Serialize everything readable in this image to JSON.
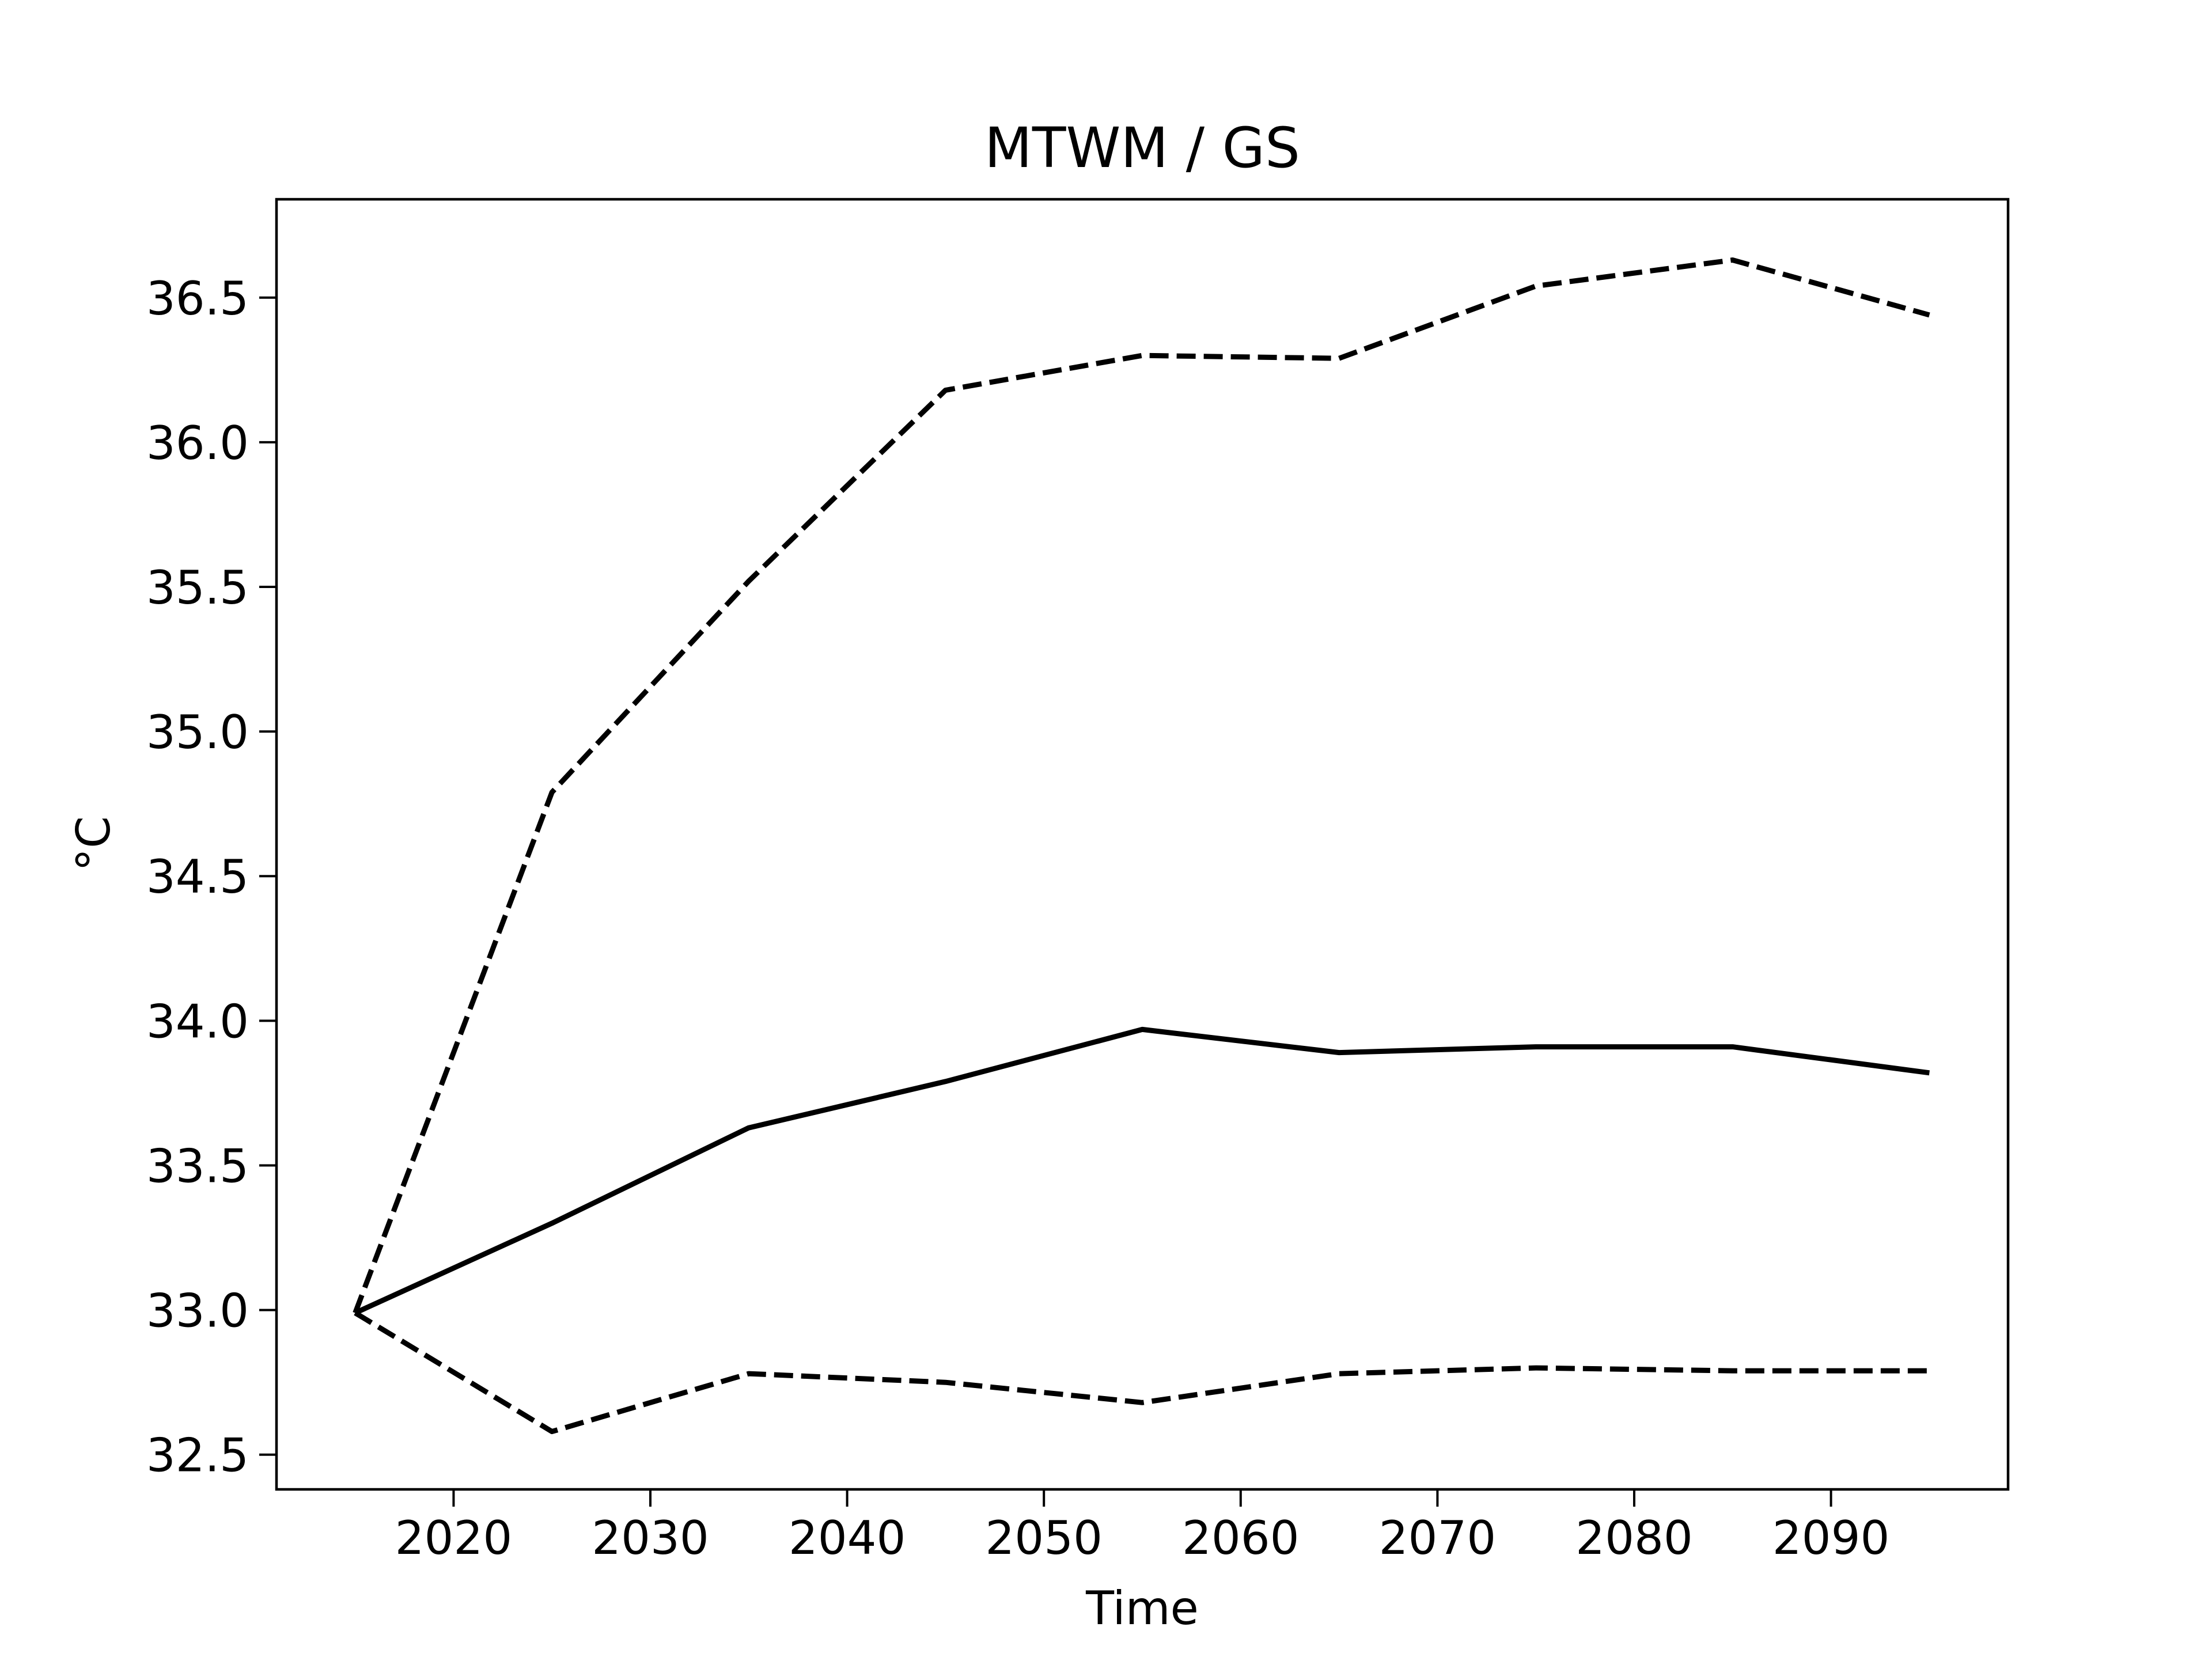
{
  "chart_data": {
    "type": "line",
    "title": "MTWM / GS",
    "xlabel": "Time",
    "ylabel": "°C",
    "xlim": [
      2011,
      2099
    ],
    "ylim": [
      32.38,
      36.84
    ],
    "xticks": [
      2020,
      2030,
      2040,
      2050,
      2060,
      2070,
      2080,
      2090
    ],
    "yticks": [
      32.5,
      33.0,
      33.5,
      34.0,
      34.5,
      35.0,
      35.5,
      36.0,
      36.5
    ],
    "grid": false,
    "x": [
      2015,
      2025,
      2035,
      2045,
      2055,
      2065,
      2075,
      2085,
      2095
    ],
    "series": [
      {
        "style": "solid",
        "color": "#000000",
        "values": [
          32.99,
          33.3,
          33.63,
          33.79,
          33.97,
          33.89,
          33.91,
          33.91,
          33.82
        ]
      },
      {
        "style": "dashed",
        "color": "#000000",
        "values": [
          32.99,
          34.79,
          35.52,
          36.18,
          36.3,
          36.29,
          36.54,
          36.63,
          36.44
        ]
      },
      {
        "style": "dashed",
        "color": "#000000",
        "values": [
          32.99,
          32.58,
          32.78,
          32.75,
          32.68,
          32.78,
          32.8,
          32.79,
          32.79
        ]
      }
    ]
  }
}
